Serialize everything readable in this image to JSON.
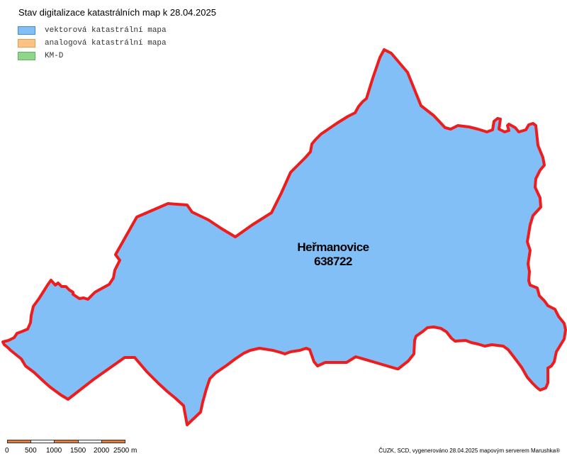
{
  "title": "Stav digitalizace katastrálních map k 28.04.2025",
  "legend": [
    {
      "label": "vektorová katastrální mapa",
      "fill": "#82bff7",
      "border": "#3e8bd9"
    },
    {
      "label": "analogová katastrální mapa",
      "fill": "#ffc285",
      "border": "#e89c4e"
    },
    {
      "label": "KM-D",
      "fill": "#8ed68a",
      "border": "#5fb35b"
    }
  ],
  "territory": {
    "name": "Heřmanovice",
    "code": "638722",
    "fill": "#82bff7",
    "outline": "#ee1c1c",
    "status": "vektorová katastrální mapa"
  },
  "scalebar": {
    "ticks": [
      "0",
      "500",
      "1000",
      "1500",
      "2000",
      "2500 m"
    ],
    "segment_colors": [
      "#e07b39",
      "#ffffff",
      "#e07b39",
      "#ffffff",
      "#e07b39"
    ]
  },
  "credits": "ČUZK, SCD, vygenerováno 28.04.2025 mapovým serverem Marushka®"
}
